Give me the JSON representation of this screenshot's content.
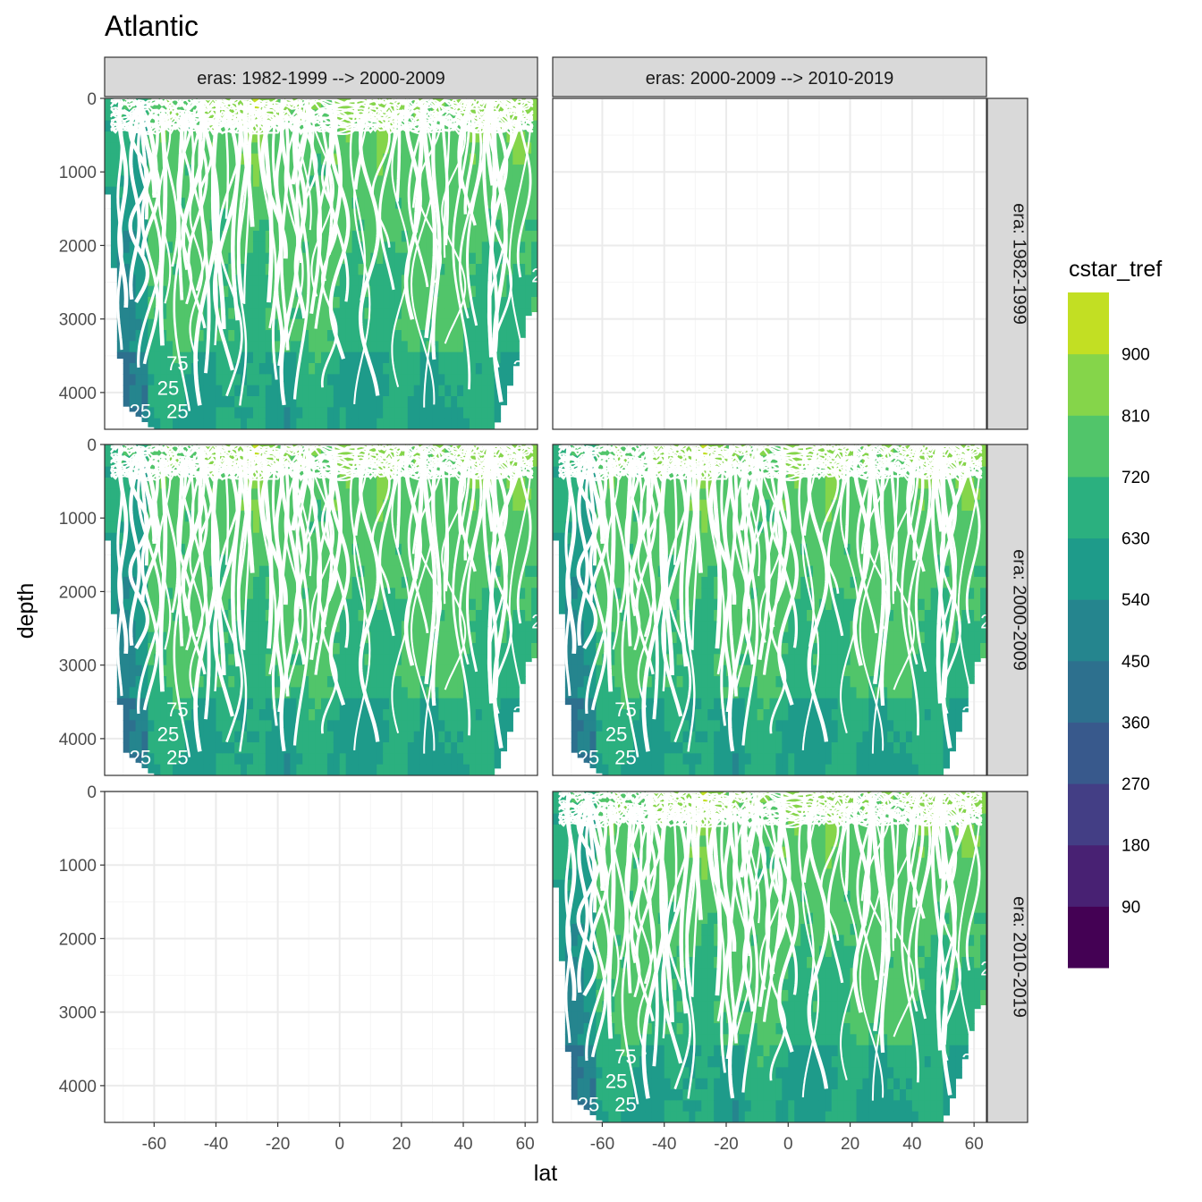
{
  "chart_data": {
    "type": "heatmap",
    "title": "Atlantic",
    "xlabel": "lat",
    "ylabel": "depth",
    "xlim": [
      -76,
      64
    ],
    "ylim": [
      4500,
      0
    ],
    "x_ticks": [
      "-60",
      "-40",
      "-20",
      "0",
      "20",
      "40",
      "60"
    ],
    "x_tick_values": [
      -60,
      -40,
      -20,
      0,
      20,
      40,
      60
    ],
    "y_ticks": [
      "0",
      "1000",
      "2000",
      "3000",
      "4000"
    ],
    "y_tick_values": [
      0,
      1000,
      2000,
      3000,
      4000
    ],
    "grid": true,
    "column_strips": [
      "eras: 1982-1999 --> 2000-2009",
      "eras: 2000-2009 --> 2010-2019"
    ],
    "row_strips": [
      "era: 1982-1999",
      "era: 2000-2009",
      "era: 2010-2019"
    ],
    "panels_with_data": [
      [
        true,
        false
      ],
      [
        true,
        true
      ],
      [
        false,
        true
      ]
    ],
    "legend": {
      "title": "cstar_tref",
      "position": "right",
      "labels": [
        "900",
        "810",
        "720",
        "630",
        "540",
        "450",
        "360",
        "270",
        "180",
        "90"
      ],
      "label_values": [
        900,
        810,
        720,
        630,
        540,
        450,
        360,
        270,
        180,
        90
      ],
      "bin_breaks": [
        0,
        90,
        180,
        270,
        360,
        450,
        540,
        630,
        720,
        810,
        900,
        990
      ],
      "colors": [
        "#440154",
        "#482173",
        "#433E85",
        "#38598C",
        "#2D708E",
        "#25858E",
        "#1E9B8A",
        "#2BB07F",
        "#51C56A",
        "#85D54A",
        "#C2DF23",
        "#FDE725"
      ]
    },
    "ocean_bottom_depth_by_lat": {
      "lat": [
        -76,
        -73,
        -70,
        -60,
        -50,
        -40,
        -30,
        -20,
        -10,
        0,
        10,
        20,
        30,
        40,
        45,
        50,
        52,
        55,
        58,
        60,
        62,
        64
      ],
      "depth": [
        800,
        2300,
        4150,
        4500,
        4500,
        4500,
        4500,
        4500,
        4500,
        4500,
        4500,
        4500,
        4500,
        4500,
        4500,
        4500,
        4300,
        3900,
        3500,
        3000,
        2900,
        2900
      ]
    },
    "contour_labels": [
      "75",
      "25",
      "25",
      "25",
      "2",
      "2"
    ]
  },
  "colors": {
    "panel_border": "#333333",
    "strip_fill": "#d9d9d9",
    "grid_major": "#ebebeb",
    "grid_minor": "#f5f5f5",
    "contour_line": "#ffffff"
  }
}
